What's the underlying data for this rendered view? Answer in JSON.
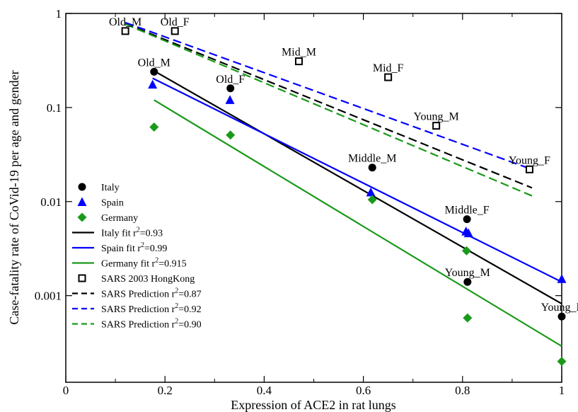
{
  "chart_data": {
    "type": "scatter",
    "xlabel": "Expression of ACE2 in rat lungs",
    "ylabel": "Case-fatality rate of CoVid-19 per age and gender",
    "x_scale": "linear",
    "y_scale": "log",
    "xlim": [
      0,
      1
    ],
    "ylim": [
      0.00012,
      1
    ],
    "x_ticks": [
      {
        "value": 0,
        "label": "0"
      },
      {
        "value": 0.2,
        "label": "0.2"
      },
      {
        "value": 0.4,
        "label": "0.4"
      },
      {
        "value": 0.6,
        "label": "0.6"
      },
      {
        "value": 0.8,
        "label": "0.8"
      },
      {
        "value": 1,
        "label": "1"
      }
    ],
    "y_ticks": [
      {
        "value": 1,
        "label": "1"
      },
      {
        "value": 0.1,
        "label": "0.1"
      },
      {
        "value": 0.01,
        "label": "0.01"
      },
      {
        "value": 0.001,
        "label": "0.001"
      }
    ],
    "grid": false,
    "legend_position": "bottom-left",
    "series": [
      {
        "name": "Italy",
        "kind": "points",
        "marker": "circle",
        "color": "#000000",
        "points": [
          {
            "x": 0.178,
            "y": 0.24
          },
          {
            "x": 0.332,
            "y": 0.16
          },
          {
            "x": 0.618,
            "y": 0.023
          },
          {
            "x": 0.809,
            "y": 0.0065
          },
          {
            "x": 0.81,
            "y": 0.0014
          },
          {
            "x": 1.0,
            "y": 0.0006
          }
        ]
      },
      {
        "name": "Spain",
        "kind": "points",
        "marker": "triangle",
        "color": "#0000ff",
        "points": [
          {
            "x": 0.175,
            "y": 0.175
          },
          {
            "x": 0.331,
            "y": 0.12
          },
          {
            "x": 0.615,
            "y": 0.0125
          },
          {
            "x": 0.807,
            "y": 0.0048
          },
          {
            "x": 0.812,
            "y": 0.0046
          },
          {
            "x": 1.0,
            "y": 0.0015
          }
        ]
      },
      {
        "name": "Germany",
        "kind": "points",
        "marker": "diamond",
        "color": "#1a9a1a",
        "points": [
          {
            "x": 0.178,
            "y": 0.062
          },
          {
            "x": 0.332,
            "y": 0.051
          },
          {
            "x": 0.618,
            "y": 0.0105
          },
          {
            "x": 0.808,
            "y": 0.003
          },
          {
            "x": 0.81,
            "y": 0.00058
          },
          {
            "x": 1.0,
            "y": 0.0002
          }
        ]
      },
      {
        "name": "Italy fit r²=0.93",
        "kind": "line",
        "dash": "solid",
        "color": "#000000",
        "points": [
          {
            "x": 0.178,
            "y": 0.245
          },
          {
            "x": 1.0,
            "y": 0.00082
          }
        ]
      },
      {
        "name": "Spain fit r²=0.99",
        "kind": "line",
        "dash": "solid",
        "color": "#0000ff",
        "points": [
          {
            "x": 0.175,
            "y": 0.205
          },
          {
            "x": 1.0,
            "y": 0.0014
          }
        ]
      },
      {
        "name": "Germany fit r²=0.915",
        "kind": "line",
        "dash": "solid",
        "color": "#1a9a1a",
        "points": [
          {
            "x": 0.178,
            "y": 0.12
          },
          {
            "x": 1.0,
            "y": 0.00029
          }
        ]
      },
      {
        "name": "SARS 2003 HongKong",
        "kind": "points",
        "marker": "square",
        "color": "#000000",
        "points": [
          {
            "x": 0.12,
            "y": 0.65
          },
          {
            "x": 0.22,
            "y": 0.65
          },
          {
            "x": 0.47,
            "y": 0.31
          },
          {
            "x": 0.65,
            "y": 0.21
          },
          {
            "x": 0.747,
            "y": 0.064
          },
          {
            "x": 0.935,
            "y": 0.022
          }
        ]
      },
      {
        "name": "SARS Prediction r²=0.87",
        "kind": "line",
        "dash": "dashed",
        "color": "#000000",
        "points": [
          {
            "x": 0.12,
            "y": 0.78
          },
          {
            "x": 0.94,
            "y": 0.014
          }
        ]
      },
      {
        "name": "SARS Prediction r²=0.92",
        "kind": "line",
        "dash": "dashed",
        "color": "#0000ff",
        "points": [
          {
            "x": 0.12,
            "y": 0.8
          },
          {
            "x": 0.94,
            "y": 0.022
          }
        ]
      },
      {
        "name": "SARS Prediction r²=0.90",
        "kind": "line",
        "dash": "dashed",
        "color": "#1a9a1a",
        "points": [
          {
            "x": 0.12,
            "y": 0.77
          },
          {
            "x": 0.94,
            "y": 0.0115
          }
        ]
      }
    ],
    "annotations": [
      {
        "text": "Old_M",
        "x": 0.12,
        "y": 0.65
      },
      {
        "text": "Old_F",
        "x": 0.22,
        "y": 0.65
      },
      {
        "text": "Mid_M",
        "x": 0.47,
        "y": 0.31
      },
      {
        "text": "Mid_F",
        "x": 0.65,
        "y": 0.21
      },
      {
        "text": "Young_M",
        "x": 0.747,
        "y": 0.064
      },
      {
        "text": "Young_F",
        "x": 0.935,
        "y": 0.022
      },
      {
        "text": "Old_M",
        "x": 0.178,
        "y": 0.24
      },
      {
        "text": "Old_F",
        "x": 0.332,
        "y": 0.16
      },
      {
        "text": "Middle_M",
        "x": 0.618,
        "y": 0.023
      },
      {
        "text": "Middle_F",
        "x": 0.809,
        "y": 0.0065
      },
      {
        "text": "Young_M",
        "x": 0.81,
        "y": 0.0014
      },
      {
        "text": "Young_F",
        "x": 1.0,
        "y": 0.0006
      }
    ],
    "legend": [
      {
        "label": "Italy",
        "sup": "",
        "series": 0
      },
      {
        "label": "Spain",
        "sup": "",
        "series": 1
      },
      {
        "label": "Germany",
        "sup": "",
        "series": 2
      },
      {
        "label": "Italy fit r",
        "sup": "2",
        "tail": "=0.93",
        "series": 3
      },
      {
        "label": "Spain fit r",
        "sup": "2",
        "tail": "=0.99",
        "series": 4
      },
      {
        "label": "Germany fit r",
        "sup": "2",
        "tail": "=0.915",
        "series": 5
      },
      {
        "label": "SARS 2003 HongKong",
        "sup": "",
        "series": 6
      },
      {
        "label": "SARS Prediction r",
        "sup": "2",
        "tail": "=0.87",
        "series": 7
      },
      {
        "label": "SARS Prediction r",
        "sup": "2",
        "tail": "=0.92",
        "series": 8
      },
      {
        "label": "SARS Prediction r",
        "sup": "2",
        "tail": "=0.90",
        "series": 9
      }
    ]
  }
}
